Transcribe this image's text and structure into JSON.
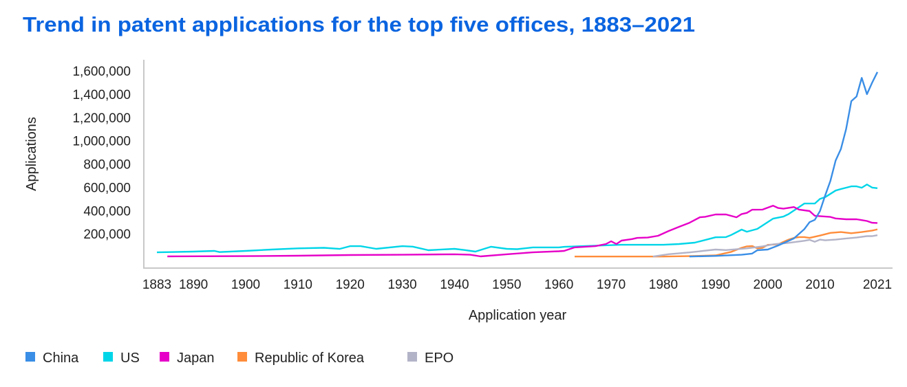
{
  "chart_data": {
    "type": "line",
    "title": "Trend in patent applications for the top five offices, 1883–2021",
    "xlabel": "Application year",
    "ylabel": "Applications",
    "xlim": [
      1883,
      2021
    ],
    "ylim": [
      0,
      1600000
    ],
    "x_ticks": [
      1883,
      1890,
      1900,
      1910,
      1920,
      1930,
      1940,
      1950,
      1960,
      1970,
      1980,
      1990,
      2000,
      2010,
      2021
    ],
    "y_ticks": [
      200000,
      400000,
      600000,
      800000,
      1000000,
      1200000,
      1400000,
      1600000
    ],
    "y_tick_labels": [
      "200,000",
      "400,000",
      "600,000",
      "800,000",
      "1,000,000",
      "1,200,000",
      "1,400,000",
      "1,600,000"
    ],
    "x_tick_labels": [
      "1883",
      "1890",
      "1900",
      "1910",
      "1920",
      "1930",
      "1940",
      "1950",
      "1960",
      "1970",
      "1980",
      "1990",
      "2000",
      "2010",
      "2021"
    ],
    "grid": false,
    "legend_position": "bottom-left",
    "series": [
      {
        "name": "China",
        "color": "#3a8ee6",
        "points": [
          [
            1985,
            5000
          ],
          [
            1990,
            10000
          ],
          [
            1995,
            20000
          ],
          [
            1997,
            30000
          ],
          [
            1998,
            59000
          ],
          [
            2000,
            65000
          ],
          [
            2002,
            100000
          ],
          [
            2005,
            160000
          ],
          [
            2007,
            240000
          ],
          [
            2008,
            300000
          ],
          [
            2009,
            320000
          ],
          [
            2010,
            395000
          ],
          [
            2011,
            530000
          ],
          [
            2012,
            655000
          ],
          [
            2013,
            830000
          ],
          [
            2014,
            928000
          ],
          [
            2015,
            1100000
          ],
          [
            2016,
            1340000
          ],
          [
            2017,
            1380000
          ],
          [
            2018,
            1540000
          ],
          [
            2019,
            1400000
          ],
          [
            2020,
            1500000
          ],
          [
            2021,
            1590000
          ]
        ]
      },
      {
        "name": "US",
        "color": "#00d5e8",
        "points": [
          [
            1883,
            41000
          ],
          [
            1890,
            47000
          ],
          [
            1894,
            53000
          ],
          [
            1895,
            43000
          ],
          [
            1900,
            53000
          ],
          [
            1905,
            65000
          ],
          [
            1910,
            75000
          ],
          [
            1915,
            80000
          ],
          [
            1918,
            70000
          ],
          [
            1920,
            94000
          ],
          [
            1922,
            94000
          ],
          [
            1925,
            71000
          ],
          [
            1930,
            94000
          ],
          [
            1932,
            90000
          ],
          [
            1935,
            59000
          ],
          [
            1940,
            71000
          ],
          [
            1942,
            60000
          ],
          [
            1944,
            47000
          ],
          [
            1947,
            89000
          ],
          [
            1950,
            71000
          ],
          [
            1952,
            68000
          ],
          [
            1955,
            83000
          ],
          [
            1960,
            83000
          ],
          [
            1961,
            88000
          ],
          [
            1965,
            95000
          ],
          [
            1972,
            106000
          ],
          [
            1980,
            106000
          ],
          [
            1983,
            112000
          ],
          [
            1986,
            124000
          ],
          [
            1990,
            170000
          ],
          [
            1992,
            172000
          ],
          [
            1993,
            190000
          ],
          [
            1995,
            236000
          ],
          [
            1996,
            218000
          ],
          [
            1998,
            242000
          ],
          [
            2001,
            330000
          ],
          [
            2003,
            348000
          ],
          [
            2004,
            370000
          ],
          [
            2007,
            460000
          ],
          [
            2009,
            460000
          ],
          [
            2010,
            500000
          ],
          [
            2011,
            515000
          ],
          [
            2013,
            572000
          ],
          [
            2014,
            585000
          ],
          [
            2016,
            608000
          ],
          [
            2017,
            608000
          ],
          [
            2018,
            596000
          ],
          [
            2019,
            624000
          ],
          [
            2020,
            597000
          ],
          [
            2021,
            592000
          ]
        ]
      },
      {
        "name": "Japan",
        "color": "#e600c8",
        "points": [
          [
            1885,
            6000
          ],
          [
            1900,
            8000
          ],
          [
            1910,
            12000
          ],
          [
            1920,
            18000
          ],
          [
            1930,
            20000
          ],
          [
            1940,
            24000
          ],
          [
            1943,
            20000
          ],
          [
            1945,
            6000
          ],
          [
            1950,
            24000
          ],
          [
            1955,
            41000
          ],
          [
            1960,
            50000
          ],
          [
            1961,
            53000
          ],
          [
            1963,
            83000
          ],
          [
            1967,
            94000
          ],
          [
            1969,
            112000
          ],
          [
            1970,
            136000
          ],
          [
            1971,
            112000
          ],
          [
            1972,
            142000
          ],
          [
            1974,
            155000
          ],
          [
            1975,
            165000
          ],
          [
            1977,
            168000
          ],
          [
            1979,
            183000
          ],
          [
            1981,
            224000
          ],
          [
            1983,
            260000
          ],
          [
            1985,
            295000
          ],
          [
            1987,
            342000
          ],
          [
            1988,
            346000
          ],
          [
            1990,
            366000
          ],
          [
            1992,
            366000
          ],
          [
            1994,
            342000
          ],
          [
            1995,
            370000
          ],
          [
            1996,
            380000
          ],
          [
            1997,
            407000
          ],
          [
            1999,
            408000
          ],
          [
            2001,
            442000
          ],
          [
            2002,
            422000
          ],
          [
            2003,
            416000
          ],
          [
            2005,
            430000
          ],
          [
            2006,
            408000
          ],
          [
            2008,
            396000
          ],
          [
            2009,
            355000
          ],
          [
            2012,
            345000
          ],
          [
            2013,
            332000
          ],
          [
            2015,
            325000
          ],
          [
            2017,
            325000
          ],
          [
            2018,
            318000
          ],
          [
            2019,
            310000
          ],
          [
            2020,
            295000
          ],
          [
            2021,
            293000
          ]
        ]
      },
      {
        "name": "Republic of Korea",
        "color": "#ff8c3a",
        "points": [
          [
            1963,
            5000
          ],
          [
            1980,
            5000
          ],
          [
            1985,
            8000
          ],
          [
            1990,
            15000
          ],
          [
            1993,
            45000
          ],
          [
            1995,
            80000
          ],
          [
            1996,
            92000
          ],
          [
            1997,
            95000
          ],
          [
            1998,
            75000
          ],
          [
            1999,
            80000
          ],
          [
            2000,
            105000
          ],
          [
            2002,
            110000
          ],
          [
            2004,
            150000
          ],
          [
            2005,
            165000
          ],
          [
            2006,
            172000
          ],
          [
            2007,
            172000
          ],
          [
            2008,
            165000
          ],
          [
            2010,
            185000
          ],
          [
            2012,
            208000
          ],
          [
            2014,
            215000
          ],
          [
            2016,
            205000
          ],
          [
            2018,
            215000
          ],
          [
            2020,
            228000
          ],
          [
            2021,
            238000
          ]
        ]
      },
      {
        "name": "EPO",
        "color": "#b3b3c8",
        "points": [
          [
            1978,
            5000
          ],
          [
            1981,
            25000
          ],
          [
            1985,
            40000
          ],
          [
            1990,
            65000
          ],
          [
            1992,
            60000
          ],
          [
            1996,
            75000
          ],
          [
            1999,
            92000
          ],
          [
            2001,
            110000
          ],
          [
            2004,
            122000
          ],
          [
            2007,
            140000
          ],
          [
            2008,
            148000
          ],
          [
            2009,
            132000
          ],
          [
            2010,
            150000
          ],
          [
            2011,
            144000
          ],
          [
            2013,
            150000
          ],
          [
            2015,
            160000
          ],
          [
            2017,
            168000
          ],
          [
            2019,
            180000
          ],
          [
            2020,
            180000
          ],
          [
            2021,
            188000
          ]
        ]
      }
    ]
  }
}
